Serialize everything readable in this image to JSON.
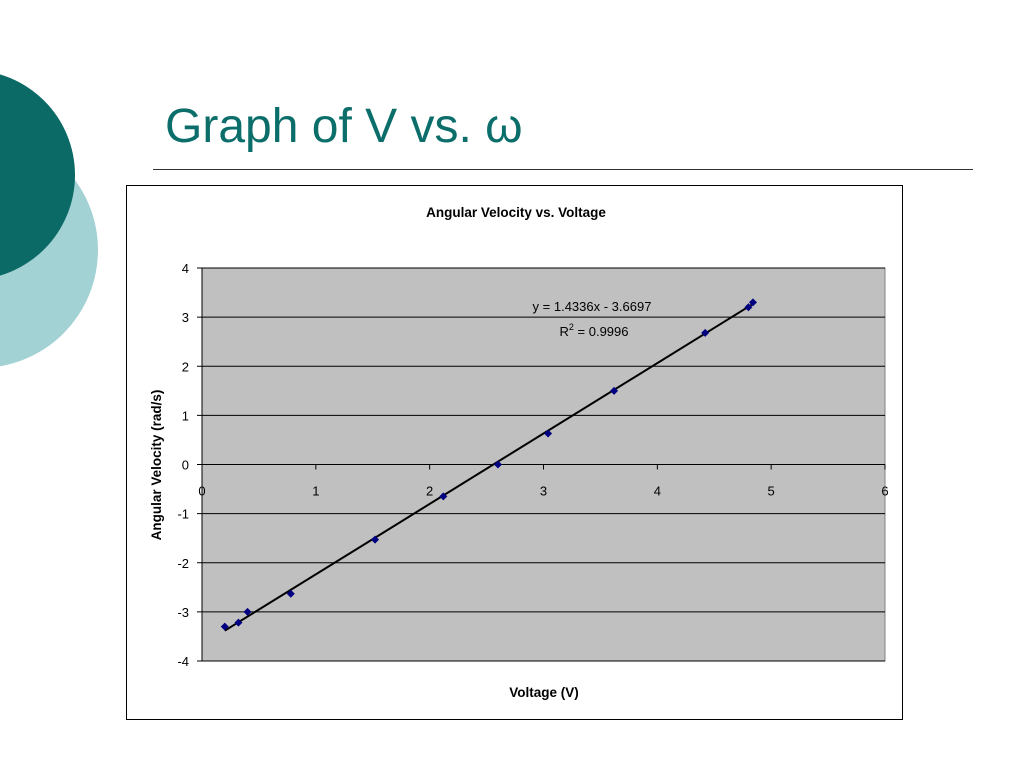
{
  "slide": {
    "title": "Graph of V vs. ω",
    "colors": {
      "title": "#0b6e6a",
      "circle_dark": "#0b6a66",
      "circle_light": "#a3d2d4"
    }
  },
  "chart_data": {
    "type": "scatter",
    "title": "Angular Velocity vs. Voltage",
    "xlabel": "Voltage (V)",
    "ylabel": "Angular Velocity (rad/s)",
    "xlim": [
      0,
      6
    ],
    "ylim": [
      -4,
      4
    ],
    "x_ticks": [
      0,
      1,
      2,
      3,
      4,
      5,
      6
    ],
    "y_ticks": [
      4,
      3,
      2,
      1,
      0,
      -1,
      -2,
      -3,
      -4
    ],
    "grid": "horizontal",
    "legend": "none",
    "plot_background": "#c0c0c0",
    "marker_color": "#000080",
    "series": [
      {
        "points": [
          {
            "x": 0.2,
            "y": -3.3
          },
          {
            "x": 0.32,
            "y": -3.22
          },
          {
            "x": 0.4,
            "y": -3.0
          },
          {
            "x": 0.78,
            "y": -2.63
          },
          {
            "x": 1.52,
            "y": -1.53
          },
          {
            "x": 2.12,
            "y": -0.65
          },
          {
            "x": 2.6,
            "y": 0.0
          },
          {
            "x": 3.04,
            "y": 0.63
          },
          {
            "x": 3.62,
            "y": 1.5
          },
          {
            "x": 4.42,
            "y": 2.68
          },
          {
            "x": 4.8,
            "y": 3.2
          },
          {
            "x": 4.84,
            "y": 3.3
          }
        ]
      }
    ],
    "trendline": {
      "slope": 1.4336,
      "intercept": -3.6697,
      "x_range": [
        0.2,
        4.84
      ],
      "equation_label": "y = 1.4336x - 3.6697",
      "r2_prefix": "R",
      "r2_superscript": "2",
      "r2_value": " = 0.9996"
    }
  }
}
